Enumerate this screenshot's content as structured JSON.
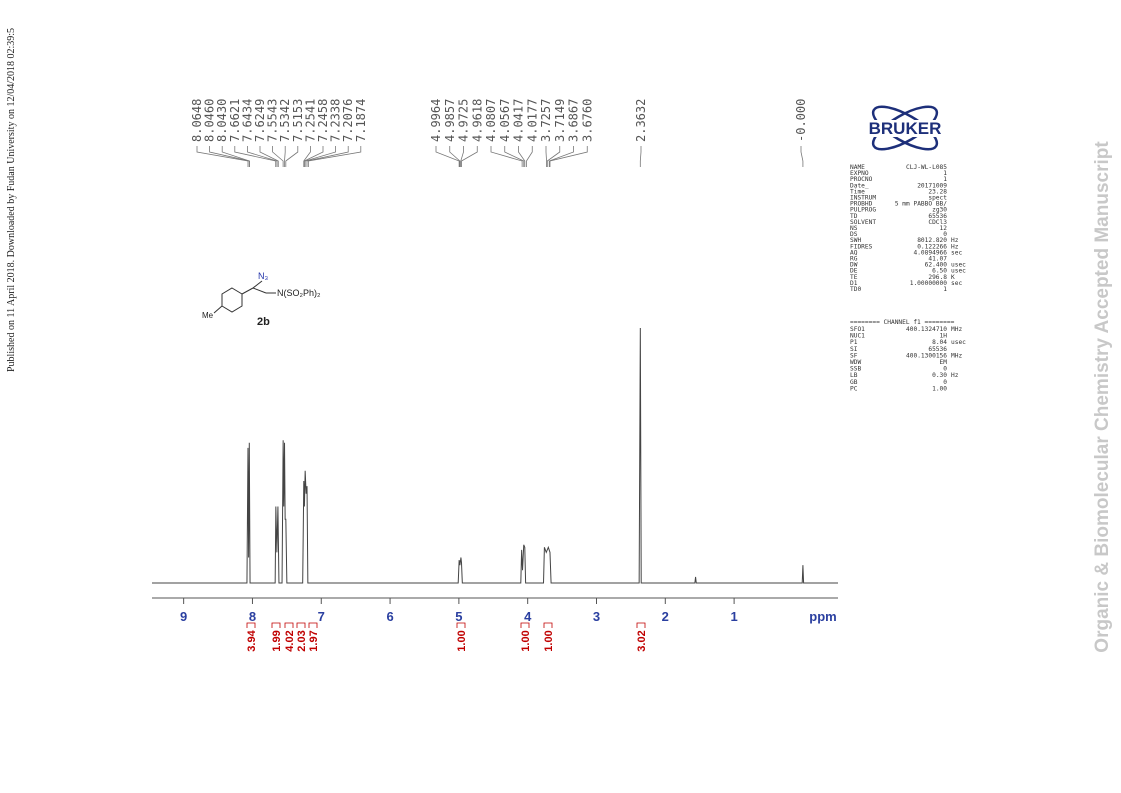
{
  "side_note": "Published on 11 April 2018. Downloaded by Fudan University on 12/04/2018 02:39:5",
  "watermark": "Organic & Biomolecular Chemistry Accepted Manuscript",
  "logo": "BRUKER",
  "structure": {
    "azide": "N₃",
    "amine": "N(SO₂Ph)₂",
    "methyl": "Me",
    "compound": "2b"
  },
  "parameters": {
    "rows": [
      [
        "NAME",
        "CLJ-WL-L085"
      ],
      [
        "EXPNO",
        "1"
      ],
      [
        "PROCNO",
        "1"
      ],
      [
        "Date_",
        "20171009"
      ],
      [
        "Time",
        "23.28"
      ],
      [
        "INSTRUM",
        "spect"
      ],
      [
        "PROBHD",
        "5 mm PABBO BB/"
      ],
      [
        "PULPROG",
        "zg30"
      ],
      [
        "TD",
        "65536"
      ],
      [
        "SOLVENT",
        "CDCl3"
      ],
      [
        "NS",
        "12"
      ],
      [
        "DS",
        "0"
      ],
      [
        "SWH",
        "8012.820",
        "Hz"
      ],
      [
        "FIDRES",
        "0.122266",
        "Hz"
      ],
      [
        "AQ",
        "4.0894966",
        "sec"
      ],
      [
        "RG",
        "41.07"
      ],
      [
        "DW",
        "62.400",
        "usec"
      ],
      [
        "DE",
        "6.50",
        "usec"
      ],
      [
        "TE",
        "296.8",
        "K"
      ],
      [
        "D1",
        "1.00000000",
        "sec"
      ],
      [
        "TD0",
        "1"
      ]
    ],
    "channel_header": "======== CHANNEL f1 ========",
    "channel_rows": [
      [
        "SFO1",
        "400.1324710",
        "MHz"
      ],
      [
        "NUC1",
        "1H"
      ],
      [
        "P1",
        "8.04",
        "usec"
      ],
      [
        "SI",
        "65536"
      ],
      [
        "SF",
        "400.1300156",
        "MHz"
      ],
      [
        "WDW",
        "EM"
      ],
      [
        "SSB",
        "0"
      ],
      [
        "LB",
        "0.30",
        "Hz"
      ],
      [
        "GB",
        "0"
      ],
      [
        "PC",
        "1.00"
      ]
    ]
  },
  "chart_data": {
    "type": "line",
    "xlabel": "ppm",
    "xlim": [
      9.46,
      -0.51
    ],
    "xticks": [
      9,
      8,
      7,
      6,
      5,
      4,
      3,
      2,
      1
    ],
    "ylim": [
      0,
      110
    ],
    "x": [
      9.46,
      8.08,
      8.065,
      8.056,
      8.046,
      8.035,
      7.67,
      7.66,
      7.645,
      7.63,
      7.615,
      7.57,
      7.554,
      7.545,
      7.534,
      7.525,
      7.515,
      7.5,
      7.27,
      7.254,
      7.245,
      7.234,
      7.22,
      7.207,
      7.195,
      5.01,
      4.996,
      4.985,
      4.97,
      4.962,
      4.95,
      4.1,
      4.088,
      4.075,
      4.057,
      4.042,
      4.03,
      3.77,
      3.757,
      3.73,
      3.7,
      3.676,
      3.66,
      2.38,
      2.363,
      2.35,
      1.57,
      1.56,
      1.55,
      0.01,
      0.0,
      -0.01,
      -0.51
    ],
    "series": [
      {
        "color": "#444444",
        "values": [
          0,
          0,
          53,
          10,
          55,
          0,
          0,
          30,
          12,
          30,
          0,
          0,
          56,
          30,
          55,
          25,
          25,
          0,
          0,
          40,
          30,
          44,
          35,
          38,
          0,
          0,
          9,
          7,
          10,
          8,
          0,
          0,
          13,
          5,
          15,
          14,
          0,
          0,
          14,
          12,
          14,
          12,
          0,
          0,
          100,
          0,
          0,
          2.4,
          0,
          0,
          7,
          0,
          0
        ]
      }
    ],
    "peak_labels": [
      [
        "8.0648",
        "8.0460",
        "8.0430",
        "7.6621",
        "7.6434",
        "7.6249",
        "7.5543",
        "7.5342",
        "7.5153",
        "7.2541",
        "7.2458",
        "7.2338",
        "7.2076",
        "7.1874"
      ],
      [
        "4.9964",
        "4.9857",
        "4.9725",
        "4.9618",
        "4.0807",
        "4.0567",
        "4.0417",
        "4.0177",
        "3.7257",
        "3.7149",
        "3.6867",
        "3.6760"
      ],
      [
        "2.3632"
      ],
      [
        "-0.000"
      ]
    ],
    "integrals": [
      "3.94",
      "1.99",
      "4.02",
      "2.03",
      "1.97",
      "1.00",
      "1.00",
      "1.00",
      "3.02"
    ]
  }
}
